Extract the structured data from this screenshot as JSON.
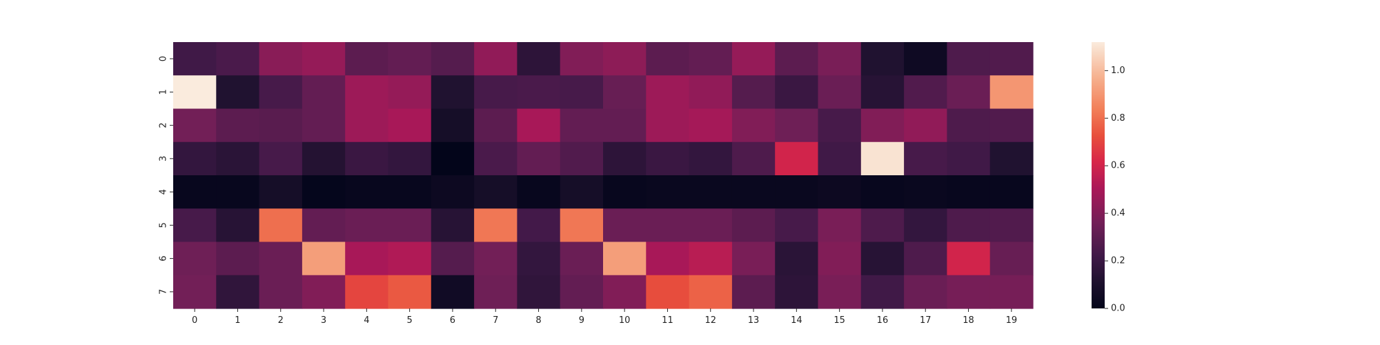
{
  "chart_data": {
    "type": "heatmap",
    "title": "",
    "xlabel": "",
    "ylabel": "",
    "x_labels": [
      "0",
      "1",
      "2",
      "3",
      "4",
      "5",
      "6",
      "7",
      "8",
      "9",
      "10",
      "11",
      "12",
      "13",
      "14",
      "15",
      "16",
      "17",
      "18",
      "19"
    ],
    "y_labels": [
      "0",
      "1",
      "2",
      "3",
      "4",
      "5",
      "6",
      "7"
    ],
    "values": [
      [
        0.22,
        0.25,
        0.42,
        0.45,
        0.3,
        0.32,
        0.28,
        0.44,
        0.16,
        0.4,
        0.43,
        0.3,
        0.32,
        0.45,
        0.3,
        0.38,
        0.12,
        0.05,
        0.26,
        0.27
      ],
      [
        1.12,
        0.12,
        0.24,
        0.32,
        0.47,
        0.45,
        0.12,
        0.24,
        0.25,
        0.24,
        0.33,
        0.47,
        0.44,
        0.28,
        0.2,
        0.34,
        0.14,
        0.27,
        0.34,
        0.9
      ],
      [
        0.36,
        0.3,
        0.29,
        0.32,
        0.47,
        0.5,
        0.08,
        0.3,
        0.5,
        0.32,
        0.32,
        0.47,
        0.49,
        0.4,
        0.35,
        0.24,
        0.4,
        0.44,
        0.26,
        0.27
      ],
      [
        0.18,
        0.15,
        0.24,
        0.13,
        0.2,
        0.18,
        0.0,
        0.25,
        0.32,
        0.27,
        0.16,
        0.2,
        0.18,
        0.26,
        0.6,
        0.22,
        1.1,
        0.24,
        0.22,
        0.12
      ],
      [
        0.02,
        0.02,
        0.08,
        0.01,
        0.02,
        0.02,
        0.04,
        0.08,
        0.02,
        0.08,
        0.02,
        0.03,
        0.03,
        0.03,
        0.03,
        0.04,
        0.02,
        0.03,
        0.02,
        0.02
      ],
      [
        0.24,
        0.14,
        0.8,
        0.32,
        0.34,
        0.34,
        0.14,
        0.82,
        0.23,
        0.82,
        0.34,
        0.34,
        0.34,
        0.3,
        0.24,
        0.38,
        0.26,
        0.18,
        0.26,
        0.27
      ],
      [
        0.35,
        0.3,
        0.34,
        0.92,
        0.5,
        0.52,
        0.28,
        0.36,
        0.18,
        0.34,
        0.92,
        0.5,
        0.54,
        0.38,
        0.15,
        0.4,
        0.14,
        0.26,
        0.6,
        0.33
      ],
      [
        0.36,
        0.17,
        0.34,
        0.4,
        0.7,
        0.75,
        0.06,
        0.35,
        0.17,
        0.32,
        0.4,
        0.72,
        0.77,
        0.3,
        0.16,
        0.38,
        0.22,
        0.34,
        0.37,
        0.37
      ]
    ],
    "colorbar": {
      "min": 0.0,
      "max": 1.12,
      "ticks": [
        0.0,
        0.2,
        0.4,
        0.6,
        0.8,
        1.0
      ],
      "tick_labels": [
        "0.0",
        "0.2",
        "0.4",
        "0.6",
        "0.8",
        "1.0"
      ],
      "colormap": "rocket"
    },
    "grid": false,
    "legend": "colorbar-right"
  }
}
